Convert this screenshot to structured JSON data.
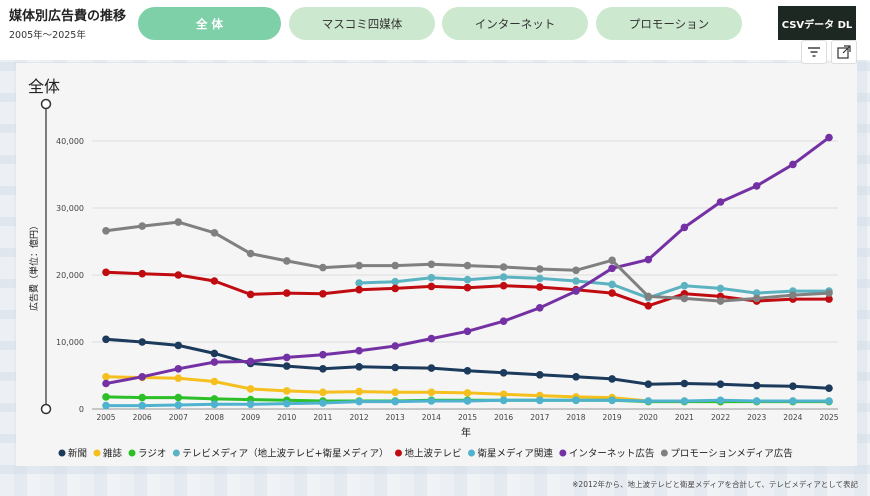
{
  "header": {
    "title": "媒体別広告費の推移",
    "subtitle": "2005年〜2025年",
    "tabs": [
      {
        "label": "全 体",
        "active": true
      },
      {
        "label": "マスコミ四媒体",
        "active": false
      },
      {
        "label": "インターネット",
        "active": false
      },
      {
        "label": "プロモーション",
        "active": false
      }
    ],
    "csv_label": "CSVデータ DL"
  },
  "icons": {
    "filter": "filter-icon",
    "expand": "expand-icon"
  },
  "footnote": "※2012年から、地上波テレビと衛星メディアを合計して、テレビメディアとして表記",
  "chart_data": {
    "type": "line",
    "title": "全体",
    "xlabel": "年",
    "ylabel": "広告費（単位：億円）",
    "x": [
      "2005",
      "2006",
      "2007",
      "2008",
      "2009",
      "2010",
      "2011",
      "2012",
      "2013",
      "2014",
      "2015",
      "2016",
      "2017",
      "2018",
      "2019",
      "2020",
      "2021",
      "2022",
      "2023",
      "2024",
      "2025"
    ],
    "y_ticks": [
      "0",
      "10,000",
      "20,000",
      "30,000",
      "40,000"
    ],
    "ylim": [
      0,
      43000
    ],
    "grid": true,
    "legend": "bottom",
    "series": [
      {
        "name": "新聞",
        "color": "#1b3a5c",
        "values": [
          10400,
          10000,
          9500,
          8300,
          6800,
          6400,
          6000,
          6300,
          6200,
          6100,
          5700,
          5400,
          5100,
          4800,
          4500,
          3700,
          3800,
          3700,
          3500,
          3400,
          3100
        ]
      },
      {
        "name": "雑誌",
        "color": "#f5bf1e",
        "values": [
          4800,
          4700,
          4600,
          4100,
          3000,
          2700,
          2500,
          2600,
          2500,
          2500,
          2400,
          2200,
          2000,
          1800,
          1700,
          1200,
          1200,
          1100,
          1200,
          1200,
          1200
        ]
      },
      {
        "name": "ラジオ",
        "color": "#2cbf27",
        "values": [
          1800,
          1700,
          1700,
          1500,
          1400,
          1300,
          1200,
          1200,
          1200,
          1300,
          1300,
          1300,
          1300,
          1300,
          1300,
          1100,
          1100,
          1100,
          1100,
          1100,
          1100
        ]
      },
      {
        "name": "テレビメディア（地上波テレビ+衛星メディア）",
        "color": "#5bb3c1",
        "values": [
          null,
          null,
          null,
          null,
          null,
          null,
          null,
          18800,
          19000,
          19600,
          19300,
          19700,
          19500,
          19100,
          18600,
          16600,
          18400,
          18000,
          17300,
          17600,
          17600
        ]
      },
      {
        "name": "地上波テレビ",
        "color": "#c00b10",
        "values": [
          20400,
          20200,
          20000,
          19100,
          17100,
          17300,
          17200,
          17800,
          18000,
          18300,
          18100,
          18400,
          18200,
          17800,
          17300,
          15400,
          17200,
          16800,
          16100,
          16400,
          16400
        ]
      },
      {
        "name": "衛星メディア関連",
        "color": "#4fb2cf",
        "values": [
          500,
          500,
          600,
          700,
          700,
          800,
          900,
          1100,
          1100,
          1200,
          1200,
          1300,
          1300,
          1300,
          1300,
          1200,
          1200,
          1300,
          1200,
          1200,
          1200
        ]
      },
      {
        "name": "インターネット広告",
        "color": "#7431a4",
        "values": [
          3800,
          4800,
          6000,
          7000,
          7100,
          7700,
          8100,
          8700,
          9400,
          10500,
          11600,
          13100,
          15100,
          17600,
          21000,
          22300,
          27100,
          30900,
          33300,
          36500,
          40500
        ]
      },
      {
        "name": "プロモーションメディア広告",
        "color": "#808080",
        "values": [
          26600,
          27300,
          27900,
          26300,
          23200,
          22100,
          21100,
          21400,
          21400,
          21600,
          21400,
          21200,
          20900,
          20700,
          22200,
          16800,
          16500,
          16100,
          16500,
          17000,
          17300
        ]
      }
    ]
  }
}
